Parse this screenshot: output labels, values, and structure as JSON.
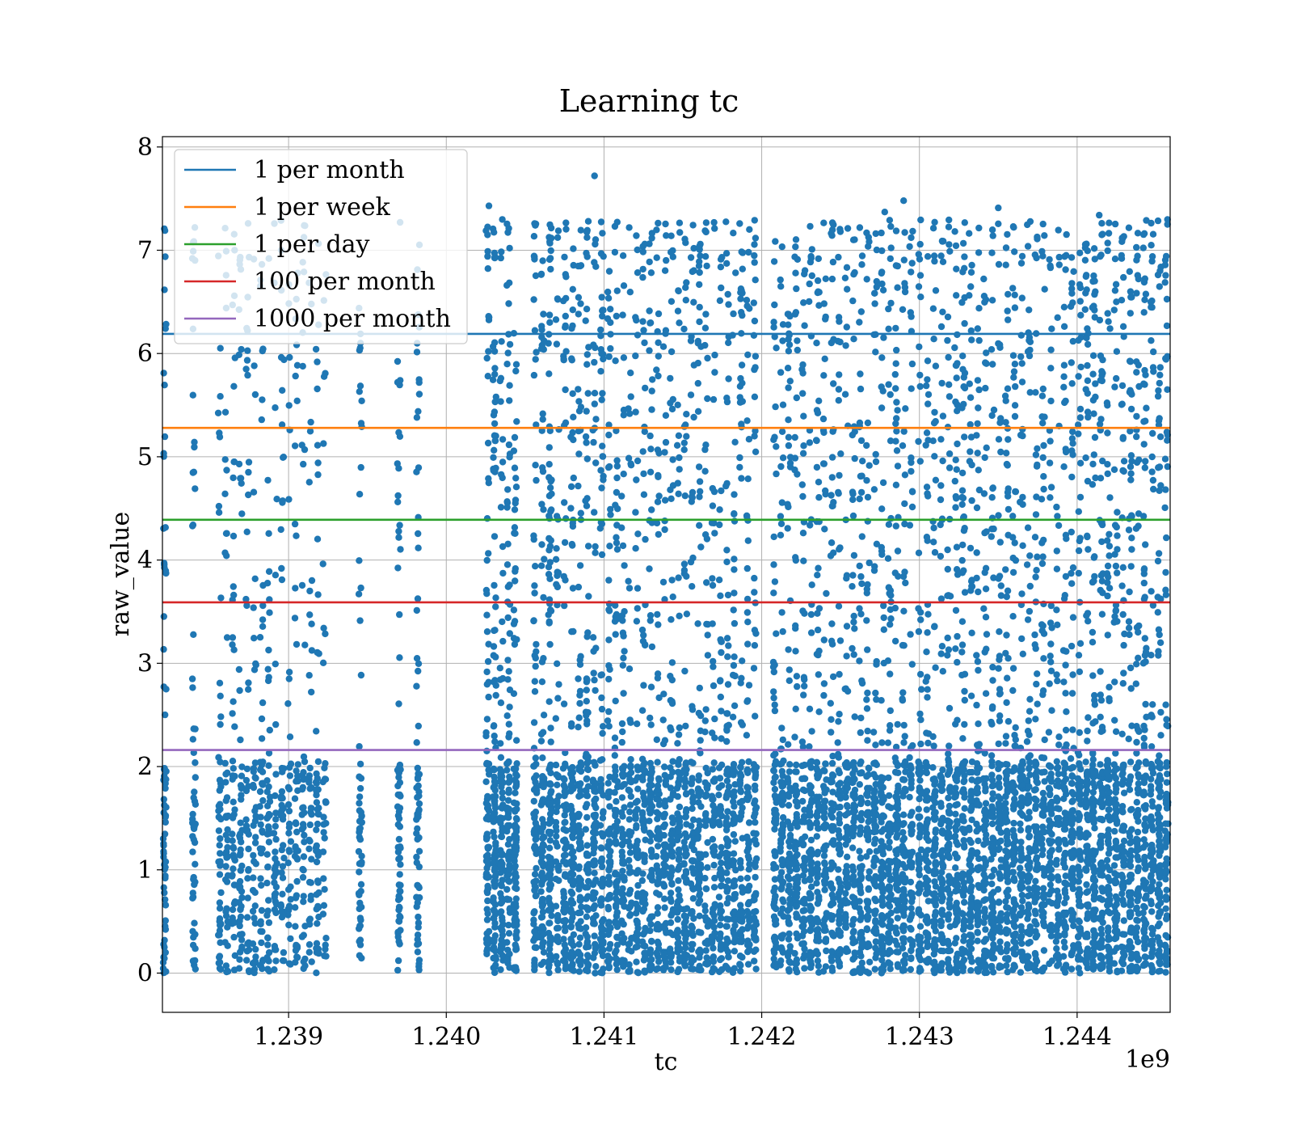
{
  "chart_data": {
    "type": "scatter",
    "title": "Learning tc",
    "xlabel": "tc",
    "ylabel": "raw_value",
    "x_offset_label": "1e9",
    "xlim": [
      1238200000,
      1244590000
    ],
    "ylim": [
      -0.38,
      8.1
    ],
    "x_ticks": [
      1239000000,
      1240000000,
      1241000000,
      1242000000,
      1243000000,
      1244000000
    ],
    "x_tick_labels": [
      "1.239",
      "1.240",
      "1.241",
      "1.242",
      "1.243",
      "1.244"
    ],
    "y_ticks": [
      0,
      1,
      2,
      3,
      4,
      5,
      6,
      7,
      8
    ],
    "y_tick_labels": [
      "0",
      "1",
      "2",
      "3",
      "4",
      "5",
      "6",
      "7",
      "8"
    ],
    "grid": true,
    "legend_position": "top-left",
    "scatter_color": "#1f77b4",
    "scatter_clusters": [
      {
        "x_start": 1238200000,
        "x_end": 1238230000,
        "density": 70
      },
      {
        "x_start": 1238380000,
        "x_end": 1238420000,
        "density": 60
      },
      {
        "x_start": 1238540000,
        "x_end": 1239250000,
        "density": 700
      },
      {
        "x_start": 1239430000,
        "x_end": 1239480000,
        "density": 60
      },
      {
        "x_start": 1239680000,
        "x_end": 1239720000,
        "density": 70
      },
      {
        "x_start": 1239800000,
        "x_end": 1239840000,
        "density": 70
      },
      {
        "x_start": 1240240000,
        "x_end": 1240460000,
        "density": 500
      },
      {
        "x_start": 1240540000,
        "x_end": 1241010000,
        "density": 900
      },
      {
        "x_start": 1241010000,
        "x_end": 1241980000,
        "density": 1600
      },
      {
        "x_start": 1242060000,
        "x_end": 1242970000,
        "density": 1600
      },
      {
        "x_start": 1242980000,
        "x_end": 1243900000,
        "density": 1700
      },
      {
        "x_start": 1243900000,
        "x_end": 1244590000,
        "density": 1400
      }
    ],
    "scatter_outliers": [
      {
        "x": 1240940000,
        "y": 7.72
      },
      {
        "x": 1242900000,
        "y": 7.48
      },
      {
        "x": 1242780000,
        "y": 7.37
      },
      {
        "x": 1240270000,
        "y": 7.43
      },
      {
        "x": 1243500000,
        "y": 7.41
      },
      {
        "x": 1244140000,
        "y": 7.34
      }
    ],
    "series": [
      {
        "name": "1 per month",
        "value": 6.19,
        "color": "#1f77b4"
      },
      {
        "name": "1 per week",
        "value": 5.28,
        "color": "#ff7f0e"
      },
      {
        "name": "1 per day",
        "value": 4.39,
        "color": "#2ca02c"
      },
      {
        "name": "100 per month",
        "value": 3.59,
        "color": "#d62728"
      },
      {
        "name": "1000 per month",
        "value": 2.16,
        "color": "#9467bd"
      }
    ]
  }
}
